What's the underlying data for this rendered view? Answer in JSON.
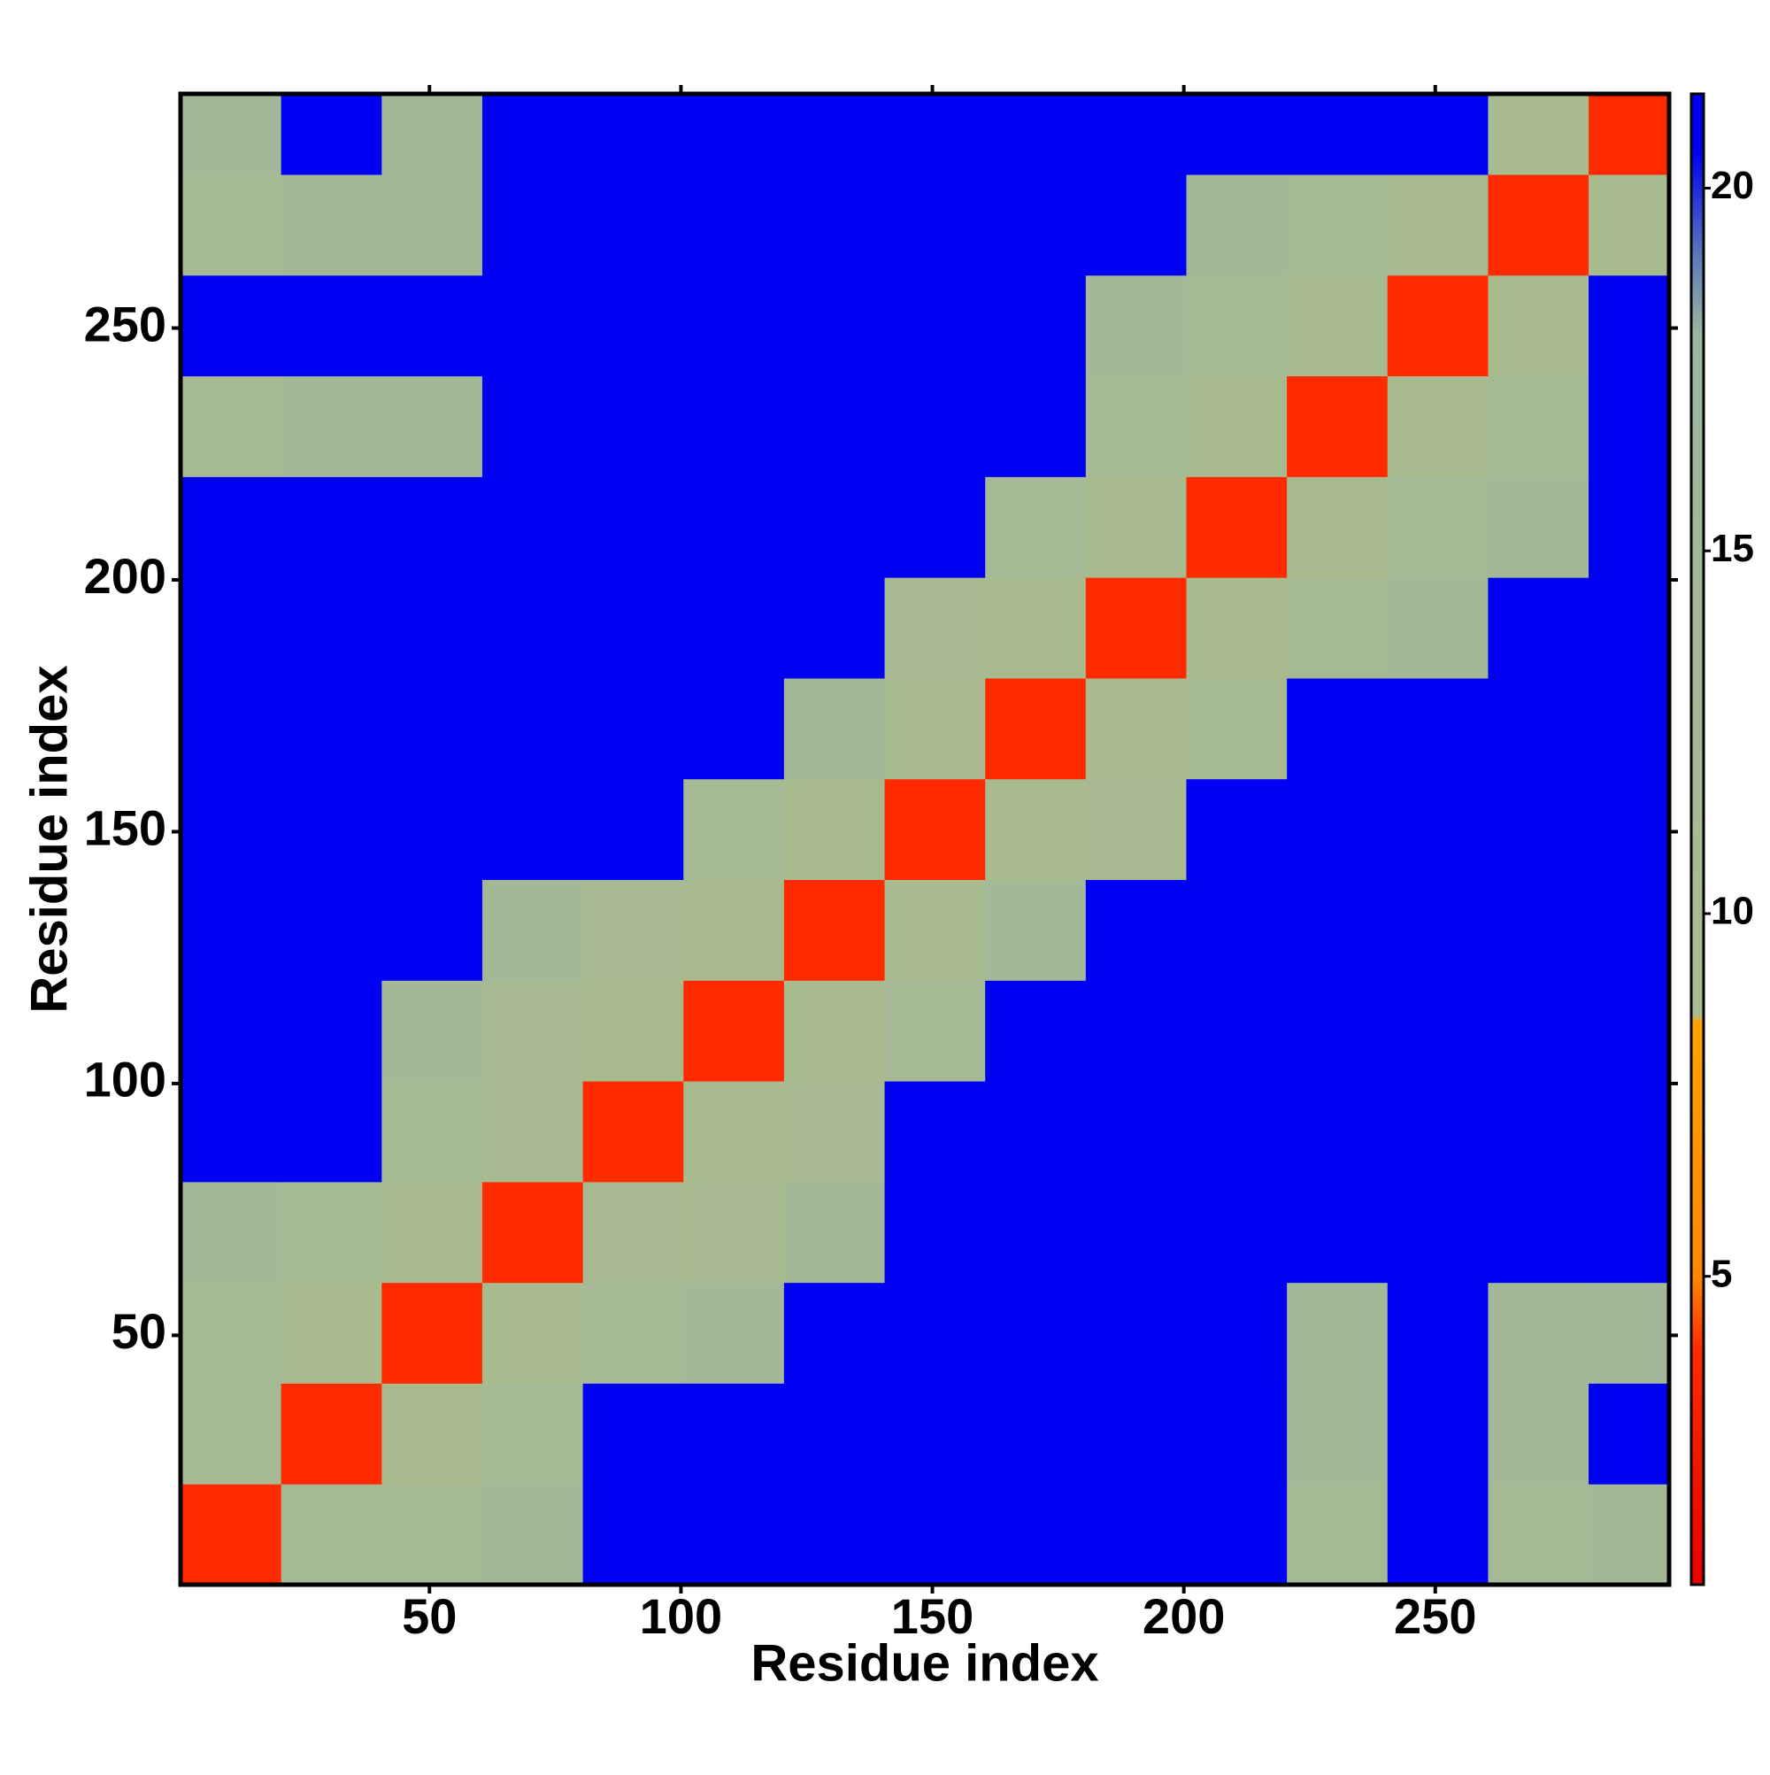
{
  "chart_data": {
    "type": "heatmap",
    "xlabel": "Residue index",
    "ylabel": "Residue index",
    "x": [
      10.5,
      30.5,
      50.5,
      70.5,
      90.5,
      110.5,
      130.5,
      150.5,
      170.5,
      190.5,
      210.5,
      230.5,
      250.5,
      270.5,
      290.5
    ],
    "y": [
      10.5,
      30.5,
      50.5,
      70.5,
      90.5,
      110.5,
      130.5,
      150.5,
      170.5,
      190.5,
      210.5,
      230.5,
      250.5,
      270.5,
      290.5
    ],
    "z": [
      [
        4,
        12,
        12,
        14,
        21,
        21,
        21,
        21,
        21,
        21,
        21,
        12,
        21,
        12,
        13
      ],
      [
        12,
        4,
        9,
        12,
        21,
        21,
        21,
        21,
        21,
        21,
        21,
        13,
        21,
        13,
        21
      ],
      [
        12,
        9,
        4,
        9,
        12,
        14,
        21,
        21,
        21,
        21,
        21,
        14,
        21,
        13,
        14
      ],
      [
        14,
        12,
        9,
        4,
        10,
        10,
        13,
        21,
        21,
        21,
        21,
        21,
        21,
        21,
        21
      ],
      [
        21,
        21,
        12,
        10,
        4,
        9,
        10,
        21,
        21,
        21,
        21,
        21,
        21,
        21,
        21
      ],
      [
        21,
        21,
        14,
        10,
        9,
        4,
        9,
        12,
        21,
        21,
        21,
        21,
        21,
        21,
        21
      ],
      [
        21,
        21,
        21,
        13,
        10,
        9,
        4,
        9,
        13,
        21,
        21,
        21,
        21,
        21,
        21
      ],
      [
        21,
        21,
        21,
        21,
        21,
        12,
        9,
        4,
        9,
        11,
        21,
        21,
        21,
        21,
        21
      ],
      [
        21,
        21,
        21,
        21,
        21,
        21,
        13,
        9,
        4,
        9,
        12,
        21,
        21,
        21,
        21
      ],
      [
        21,
        21,
        21,
        21,
        21,
        21,
        21,
        11,
        9,
        4,
        9,
        12,
        13,
        21,
        21
      ],
      [
        21,
        21,
        21,
        21,
        21,
        21,
        21,
        21,
        12,
        9,
        4,
        9,
        12,
        13,
        21
      ],
      [
        12,
        13,
        14,
        21,
        21,
        21,
        21,
        21,
        21,
        12,
        9,
        4,
        9,
        12,
        21
      ],
      [
        21,
        21,
        21,
        21,
        21,
        21,
        21,
        21,
        21,
        13,
        12,
        9,
        4,
        9,
        21
      ],
      [
        12,
        13,
        13,
        21,
        21,
        21,
        21,
        21,
        21,
        21,
        13,
        12,
        9,
        4,
        9
      ],
      [
        13,
        21,
        14,
        21,
        21,
        21,
        21,
        21,
        21,
        21,
        21,
        21,
        21,
        9,
        4
      ]
    ],
    "xlim": [
      0.5,
      296.5
    ],
    "ylim": [
      0.5,
      296.5
    ],
    "xticks": [
      50,
      100,
      150,
      200,
      250
    ],
    "yticks": [
      50,
      100,
      150,
      200,
      250
    ],
    "clim": [
      0.75,
      21.3
    ],
    "cticks": [
      5,
      10,
      15,
      20
    ],
    "colorscale": [
      [
        0.75,
        "#e80000"
      ],
      [
        4,
        "#ff2a00"
      ],
      [
        5,
        "#ff8800"
      ],
      [
        8.5,
        "#ffa200"
      ],
      [
        8.6,
        "#a9bb8e"
      ],
      [
        18,
        "#9db59f"
      ],
      [
        19,
        "#5f7fb8"
      ],
      [
        20.5,
        "#0000f2"
      ],
      [
        21.3,
        "#0000f2"
      ]
    ]
  }
}
